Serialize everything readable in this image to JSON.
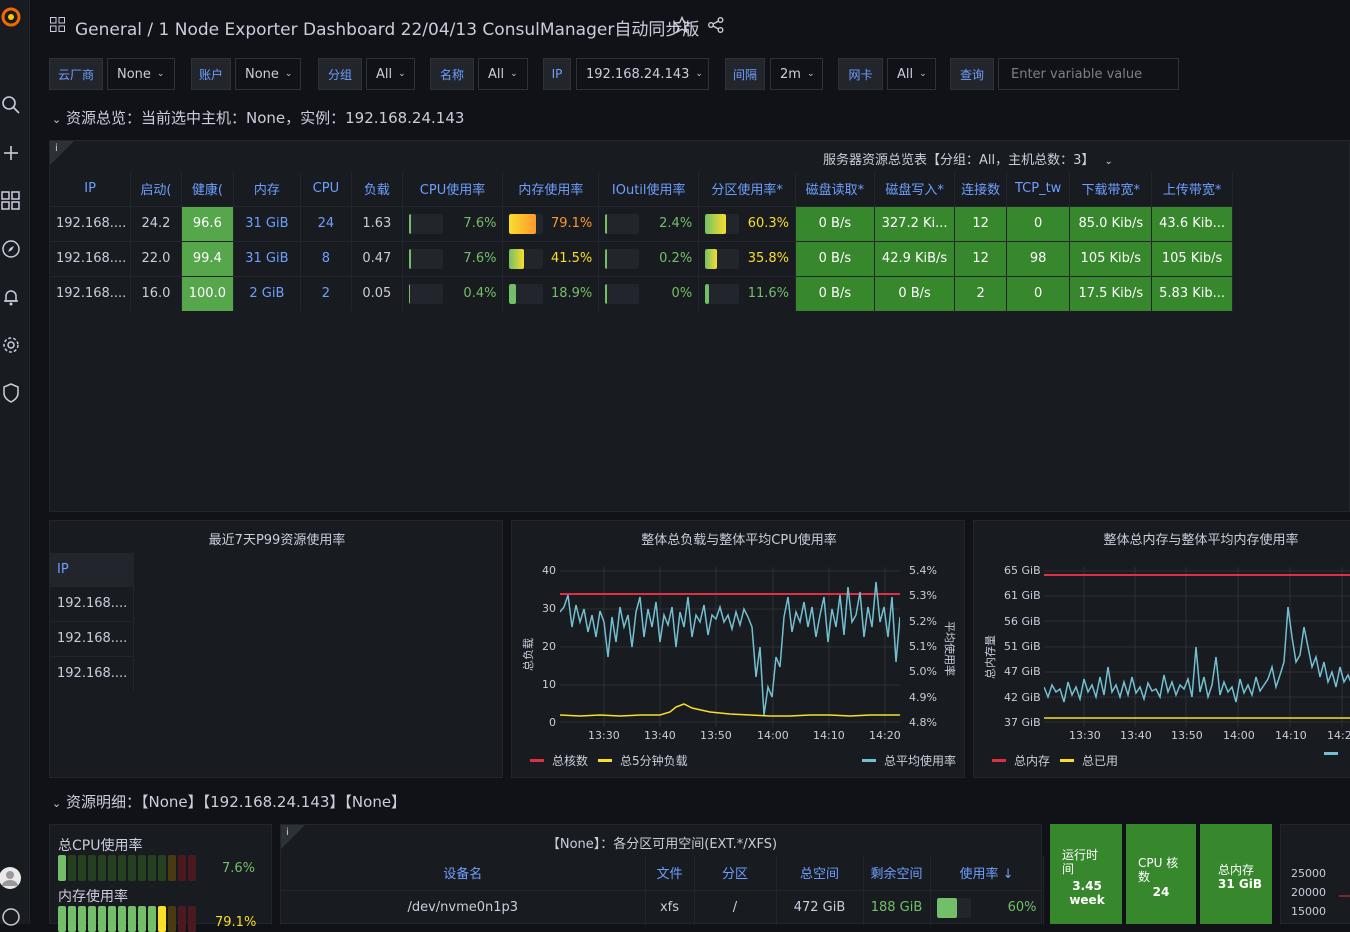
{
  "breadcrumb": {
    "folder": "General",
    "separator": "/",
    "title": "1 Node Exporter Dashboard 22/04/13 ConsulManager自动同步版"
  },
  "variables": [
    {
      "label": "云厂商",
      "value": "None"
    },
    {
      "label": "账户",
      "value": "None"
    },
    {
      "label": "分组",
      "value": "All"
    },
    {
      "label": "名称",
      "value": "All"
    },
    {
      "label": "IP",
      "value": "192.168.24.143"
    },
    {
      "label": "间隔",
      "value": "2m"
    },
    {
      "label": "网卡",
      "value": "All"
    },
    {
      "label": "查询",
      "placeholder": "Enter variable value"
    }
  ],
  "rows": {
    "overview": "资源总览：当前选中主机：None，实例：192.168.24.143",
    "detail": "资源明细：【None】【192.168.24.143】【None】"
  },
  "server_table": {
    "title": "服务器资源总览表【分组：All，主机总数：3】",
    "columns": [
      "IP",
      "启动(",
      "健康(",
      "内存",
      "CPU",
      "负载",
      "CPU使用率",
      "内存使用率",
      "IOutil使用率",
      "分区使用率*",
      "磁盘读取*",
      "磁盘写入*",
      "连接数",
      "TCP_tw",
      "下载带宽*",
      "上传带宽*"
    ],
    "rows": [
      {
        "ip": "192.168....",
        "uptime": "24.2",
        "health": "96.6",
        "mem": "31 GiB",
        "cpu": "24",
        "load": "1.63",
        "cpu_pct": "7.6%",
        "cpu_v": 0.076,
        "mem_pct": "79.1%",
        "mem_v": 0.791,
        "io_pct": "2.4%",
        "io_v": 0.024,
        "disk_pct": "60.3%",
        "disk_v": 0.603,
        "read": "0 B/s",
        "write": "327.2 Ki...",
        "conn": "12",
        "tcptw": "0",
        "down": "85.0 Kib/s",
        "up": "43.6 Kib..."
      },
      {
        "ip": "192.168....",
        "uptime": "22.0",
        "health": "99.4",
        "mem": "31 GiB",
        "cpu": "8",
        "load": "0.47",
        "cpu_pct": "7.6%",
        "cpu_v": 0.076,
        "mem_pct": "41.5%",
        "mem_v": 0.415,
        "io_pct": "0.2%",
        "io_v": 0.002,
        "disk_pct": "35.8%",
        "disk_v": 0.358,
        "read": "0 B/s",
        "write": "42.9 KiB/s",
        "conn": "12",
        "tcptw": "98",
        "down": "105 Kib/s",
        "up": "105 Kib/s"
      },
      {
        "ip": "192.168....",
        "uptime": "16.0",
        "health": "100.0",
        "mem": "2 GiB",
        "cpu": "2",
        "load": "0.05",
        "cpu_pct": "0.4%",
        "cpu_v": 0.004,
        "mem_pct": "18.9%",
        "mem_v": 0.189,
        "io_pct": "0%",
        "io_v": 0,
        "disk_pct": "11.6%",
        "disk_v": 0.116,
        "read": "0 B/s",
        "write": "0 B/s",
        "conn": "2",
        "tcptw": "0",
        "down": "17.5 Kib/s",
        "up": "5.83 Kib..."
      }
    ]
  },
  "p99_panel": {
    "title": "最近7天P99资源使用率",
    "header": "IP",
    "rows": [
      "192.168....",
      "192.168....",
      "192.168...."
    ]
  },
  "load_panel": {
    "title": "整体总负载与整体平均CPU使用率",
    "yleft": [
      "40",
      "30",
      "20",
      "10",
      "0"
    ],
    "yright": [
      "5.4%",
      "5.3%",
      "5.2%",
      "5.1%",
      "5.0%",
      "4.9%",
      "4.8%"
    ],
    "xticks": [
      "13:30",
      "13:40",
      "13:50",
      "14:00",
      "14:10",
      "14:20"
    ],
    "ylabel_left": "总负载",
    "ylabel_right": "平均使用率",
    "legend": [
      "总核数",
      "总5分钟负载",
      "总平均使用率"
    ]
  },
  "mem_panel": {
    "title": "整体总内存与整体平均内存使用率",
    "yleft": [
      "65 GiB",
      "61 GiB",
      "56 GiB",
      "51 GiB",
      "47 GiB",
      "42 GiB",
      "37 GiB"
    ],
    "xticks": [
      "13:30",
      "13:40",
      "13:50",
      "14:00",
      "14:10",
      "14:2"
    ],
    "ylabel_left": "总内存量",
    "legend": [
      "总内存",
      "总已用"
    ]
  },
  "gauge_panel": {
    "cpu_label": "总CPU使用率",
    "cpu_value": "7.6%",
    "cpu_v": 0.076,
    "mem_label": "内存使用率",
    "mem_value": "79.1%",
    "mem_v": 0.791
  },
  "fs_panel": {
    "title": "【None】：各分区可用空间(EXT.*/XFS)",
    "columns": [
      "设备名",
      "文件",
      "分区",
      "总空间",
      "剩余空间",
      "使用率 ↓"
    ],
    "row": {
      "device": "/dev/nvme0n1p3",
      "fstype": "xfs",
      "mount": "/",
      "total": "472 GiB",
      "free": "188 GiB",
      "pct": "60%",
      "v": 0.6
    }
  },
  "stats": [
    {
      "label": "运行时间",
      "value": "3.45 week"
    },
    {
      "label": "CPU 核数",
      "value": "24"
    },
    {
      "label": "总内存",
      "value": "31 GiB"
    }
  ],
  "net_panel": {
    "yticks": [
      "25000",
      "20000",
      "15000"
    ]
  },
  "colors": {
    "bg": "#111217",
    "panel": "#181b1f",
    "accent": "#6e9fff",
    "green": "#37872d",
    "red": "#e02f44",
    "yellow": "#fade2a",
    "cyan": "#73bfd1"
  }
}
